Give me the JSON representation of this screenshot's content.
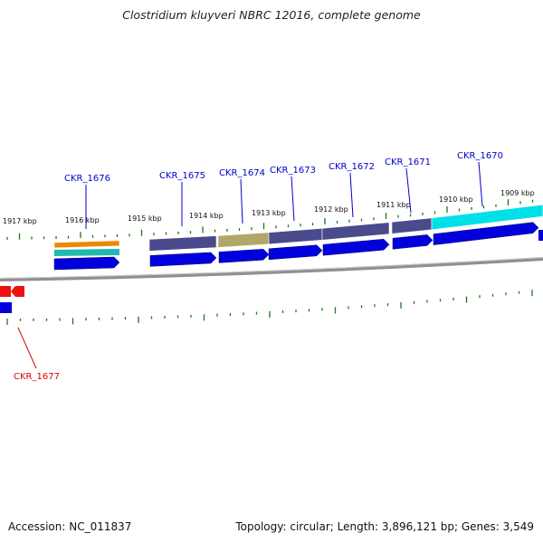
{
  "title": "Clostridium kluyveri NBRC 12016, complete genome",
  "footer": {
    "accession": "Accession: NC_011837",
    "summary": "Topology: circular; Length: 3,896,121 bp; Genes: 3,549"
  },
  "colors": {
    "backbone": "#808080",
    "tick": "#1a7a1a",
    "cds": "#0000dd",
    "label_blue": "#0000cc",
    "label_red": "#dd0000",
    "gene_red": "#ee1111",
    "track_purple": "#4a4a8c",
    "track_khaki": "#b0a86a",
    "track_cyan": "#00e0e8",
    "track_orange": "#ee8800",
    "track_teal": "#22b8b0"
  },
  "scale_labels": [
    "1917 kbp",
    "1916 kbp",
    "1915 kbp",
    "1914 kbp",
    "1913 kbp",
    "1912 kbp",
    "1911 kbp",
    "1910 kbp",
    "1909 kbp"
  ],
  "genes": [
    {
      "label": "CKR_1676",
      "color": "blue"
    },
    {
      "label": "CKR_1675",
      "color": "blue"
    },
    {
      "label": "CKR_1674",
      "color": "blue"
    },
    {
      "label": "CKR_1673",
      "color": "blue"
    },
    {
      "label": "CKR_1672",
      "color": "blue"
    },
    {
      "label": "CKR_1671",
      "color": "blue"
    },
    {
      "label": "CKR_1670",
      "color": "blue"
    },
    {
      "label": "CKR_1677",
      "color": "red"
    }
  ]
}
